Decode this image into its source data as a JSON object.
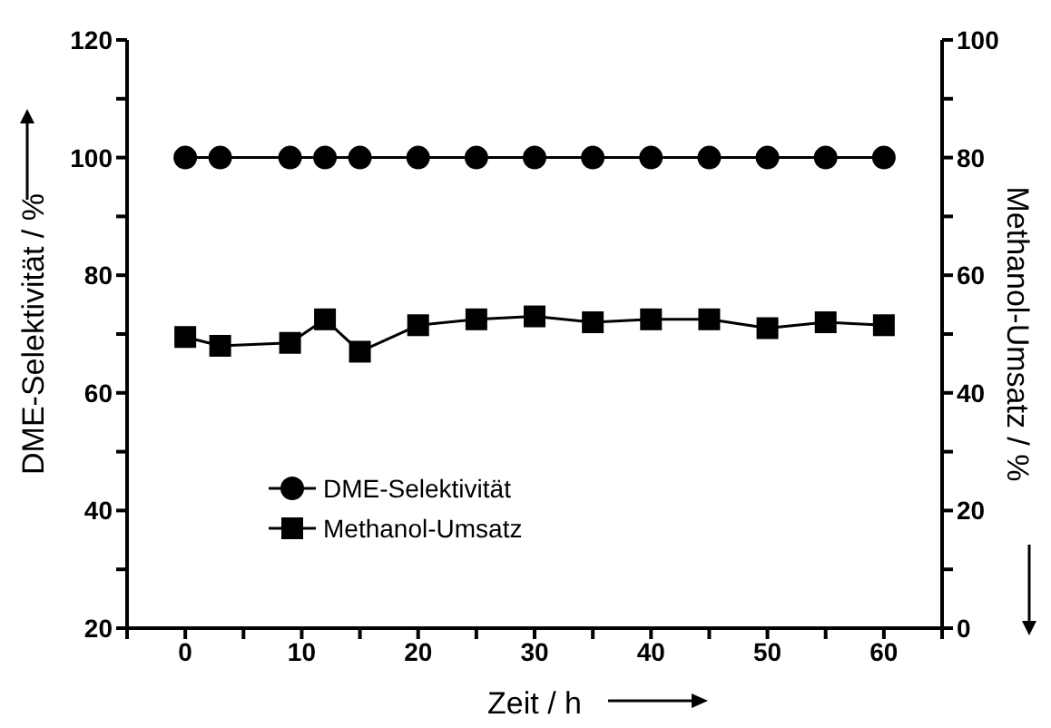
{
  "chart_data": {
    "type": "line",
    "xlabel": "Zeit / h",
    "ylabel": "DME-Selektivität / %",
    "y2label": "Methanol-Umsatz / %",
    "x": [
      0,
      3,
      9,
      12,
      15,
      20,
      25,
      30,
      35,
      40,
      45,
      50,
      55,
      60
    ],
    "series": [
      {
        "name": "DME-Selektivität",
        "color": "#000000",
        "marker": "circle",
        "values": [
          100,
          100,
          100,
          100,
          100,
          100,
          100,
          100,
          100,
          100,
          100,
          100,
          100,
          100
        ]
      },
      {
        "name": "Methanol-Umsatz",
        "color": "#000000",
        "marker": "square",
        "axis": "y2",
        "values": [
          49.5,
          48,
          48.5,
          52.5,
          47,
          51.5,
          52.5,
          53,
          52,
          52.5,
          52.5,
          51,
          52,
          51.5
        ]
      }
    ],
    "xlim": [
      -5,
      65
    ],
    "xticks": [
      {
        "value": -5,
        "label": null
      },
      0,
      {
        "value": 5,
        "label": null
      },
      10,
      {
        "value": 15,
        "label": null
      },
      20,
      {
        "value": 25,
        "label": null
      },
      30,
      {
        "value": 35,
        "label": null
      },
      40,
      {
        "value": 45,
        "label": null
      },
      50,
      {
        "value": 55,
        "label": null
      },
      60,
      {
        "value": 65,
        "label": null
      }
    ],
    "ylim": [
      20,
      120
    ],
    "yticks": [
      20,
      {
        "value": 30,
        "label": null
      },
      40,
      {
        "value": 50,
        "label": null
      },
      60,
      {
        "value": 70,
        "label": null
      },
      80,
      {
        "value": 90,
        "label": null
      },
      100,
      {
        "value": 110,
        "label": null
      },
      120
    ],
    "y2lim": [
      0,
      100
    ],
    "y2ticks": [
      0,
      {
        "value": 10,
        "label": null
      },
      20,
      {
        "value": 30,
        "label": null
      },
      40,
      {
        "value": 50,
        "label": null
      },
      60,
      {
        "value": 70,
        "label": null
      },
      80,
      {
        "value": 90,
        "label": null
      },
      100
    ],
    "legend": "bottom left",
    "grid": false,
    "line_style": "solid"
  }
}
